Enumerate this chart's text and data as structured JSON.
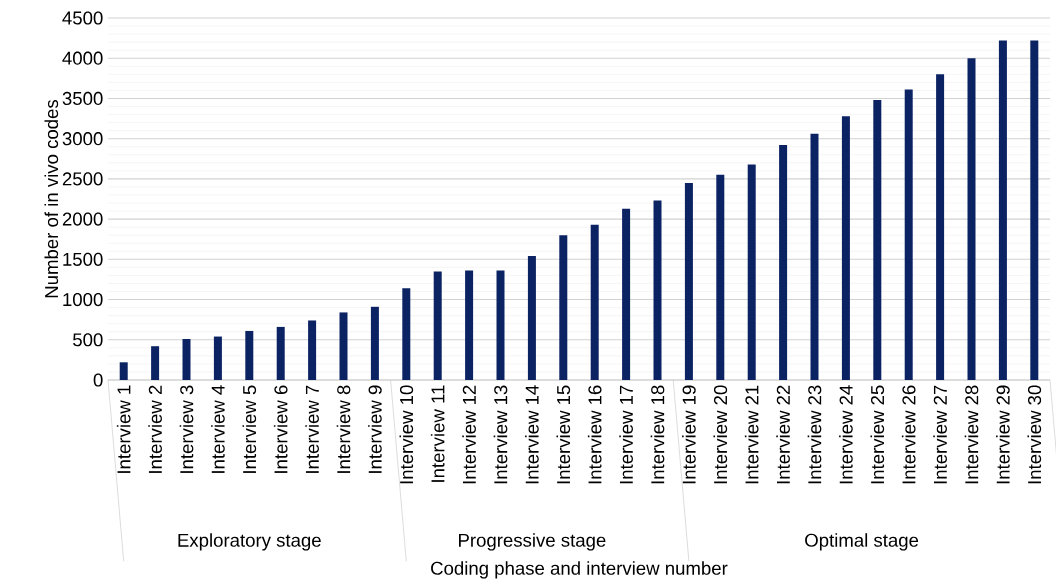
{
  "chart_data": {
    "type": "bar",
    "xlabel": "Coding phase and interview number",
    "ylabel": "Number of in vivo codes",
    "categories": [
      "Interview 1",
      "Interview 2",
      "Interview 3",
      "Interview 4",
      "Interview 5",
      "Interview 6",
      "Interview 7",
      "Interview 8",
      "Interview 9",
      "Interview 10",
      "Interview 11",
      "Interview 12",
      "Interview 13",
      "Interview 14",
      "Interview 15",
      "Interview 16",
      "Interview 17",
      "Interview 18",
      "Interview 19",
      "Interview 20",
      "Interview 21",
      "Interview 22",
      "Interview 23",
      "Interview 24",
      "Interview 25",
      "Interview 26",
      "Interview 27",
      "Interview 28",
      "Interview 29",
      "Interview 30"
    ],
    "values": [
      220,
      420,
      510,
      540,
      610,
      660,
      740,
      840,
      910,
      1140,
      1350,
      1360,
      1360,
      1540,
      1800,
      1930,
      2130,
      2230,
      2450,
      2550,
      2680,
      2920,
      3060,
      3280,
      3480,
      3610,
      3800,
      4000,
      4220,
      4220
    ],
    "color": "#0b2263",
    "ylim": [
      0,
      4500
    ],
    "yticks": [
      0,
      500,
      1000,
      1500,
      2000,
      2500,
      3000,
      3500,
      4000,
      4500
    ],
    "grid": "y",
    "annotations": [
      "Exploratory stage",
      "Progressive stage",
      "Optimal stage"
    ]
  }
}
